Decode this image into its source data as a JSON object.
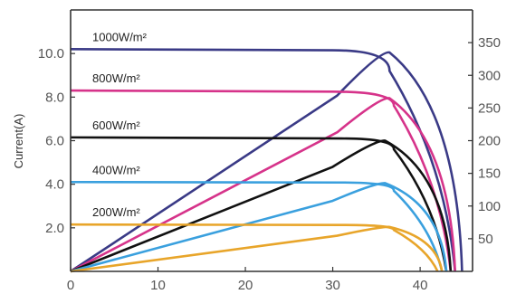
{
  "chart_data": {
    "type": "line",
    "ylabel": "Current(A)",
    "xlim": [
      0,
      46
    ],
    "ylim": [
      0,
      12
    ],
    "y2lim": [
      0,
      400
    ],
    "x_ticks": [
      "0",
      "10",
      "20",
      "30",
      "40"
    ],
    "y_ticks": [
      "2.0",
      "4.0",
      "6.0",
      "8.0",
      "10.0"
    ],
    "y2_ticks": [
      "50",
      "100",
      "150",
      "200",
      "250",
      "300",
      "350"
    ],
    "grid": false,
    "series": [
      {
        "name": "1000W/m²",
        "color": "#3a3a86",
        "current": {
          "isc": 10.2,
          "knee_x": 30,
          "knee_y": 10.15,
          "drop_x": 36.5,
          "drop_y": 9.2,
          "voc": 44
        },
        "power": {
          "peak_x": 36.5,
          "peak_y": 335,
          "voc": 44.8
        }
      },
      {
        "name": "800W/m²",
        "color": "#d6338a",
        "current": {
          "isc": 8.3,
          "knee_x": 30,
          "knee_y": 8.25,
          "drop_x": 37,
          "drop_y": 7.6,
          "voc": 43.5
        },
        "power": {
          "peak_x": 36.5,
          "peak_y": 265,
          "voc": 44
        }
      },
      {
        "name": "600W/m²",
        "color": "#111111",
        "current": {
          "isc": 6.15,
          "knee_x": 31,
          "knee_y": 6.1,
          "drop_x": 37,
          "drop_y": 5.6,
          "voc": 43
        },
        "power": {
          "peak_x": 36,
          "peak_y": 200,
          "voc": 43.5
        }
      },
      {
        "name": "400W/m²",
        "color": "#3aa0de",
        "current": {
          "isc": 4.1,
          "knee_x": 31,
          "knee_y": 4.08,
          "drop_x": 37,
          "drop_y": 3.7,
          "voc": 42.5
        },
        "power": {
          "peak_x": 36,
          "peak_y": 135,
          "voc": 43
        }
      },
      {
        "name": "200W/m²",
        "color": "#e8a52a",
        "current": {
          "isc": 2.15,
          "knee_x": 31,
          "knee_y": 2.13,
          "drop_x": 37,
          "drop_y": 1.9,
          "voc": 42
        },
        "power": {
          "peak_x": 36.5,
          "peak_y": 68,
          "voc": 42.5
        }
      }
    ]
  }
}
